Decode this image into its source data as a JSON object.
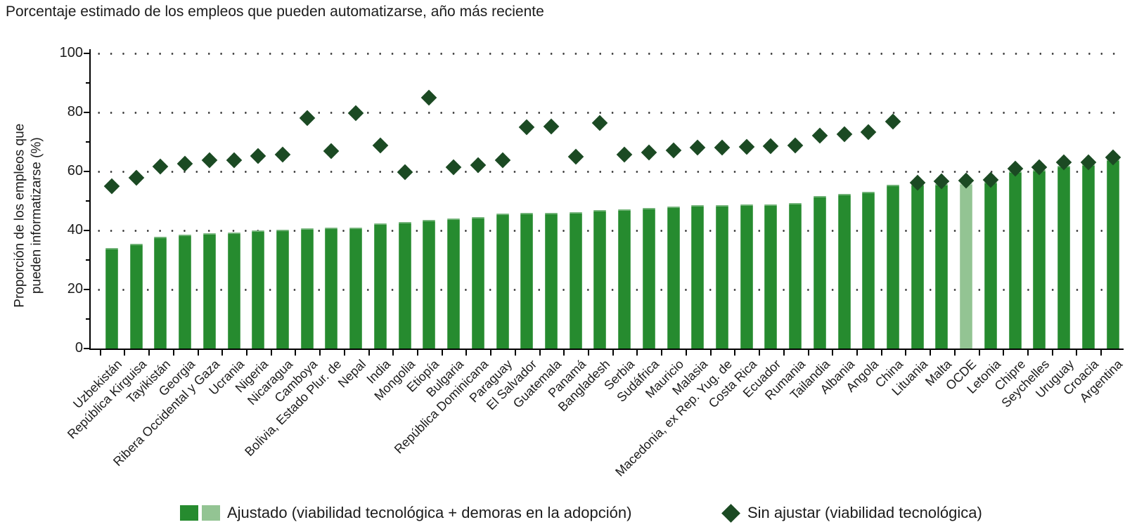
{
  "title": "Porcentaje estimado de los empleos que pueden automatizarse, año más reciente",
  "y_axis": {
    "label_line1": "Proporción de los empleos que",
    "label_line2": "pueden informatizarse (%)",
    "ticks": [
      0,
      20,
      40,
      60,
      80,
      100
    ]
  },
  "legend": {
    "adjusted_label": "Ajustado (viabilidad tecnológica + demoras en la adopción)",
    "unadjusted_label": "Sin ajustar (viabilidad tecnológica)"
  },
  "colors": {
    "bar_green": "#268b2f",
    "bar_light": "#93c493",
    "diamond_green": "#1b4a23",
    "text": "#1c1c1c",
    "dot": "#3c3c3c",
    "axis": "#000000"
  },
  "chart_data": {
    "type": "bar",
    "title": "Porcentaje estimado de los empleos que pueden automatizarse, año más reciente",
    "xlabel": "",
    "ylabel": "Proporción de los empleos que pueden informatizarse (%)",
    "ylim": [
      0,
      100
    ],
    "grid": "dotted horizontal lines at 20/40/60/80/100",
    "legend_position": "bottom",
    "highlighted_category": "OCDE",
    "categories": [
      "Uzbekistán",
      "República Kirguisa",
      "Tayikistán",
      "Georgia",
      "Ribera Occidental y Gaza",
      "Ucrania",
      "Nigeria",
      "Nicaragua",
      "Camboya",
      "Bolivia, Estado Plur. de",
      "Nepal",
      "India",
      "Mongolia",
      "Etiopía",
      "Bulgaria",
      "República Dominicana",
      "Paraguay",
      "El Salvador",
      "Guatemala",
      "Panamá",
      "Bangladesh",
      "Serbia",
      "Sudáfrica",
      "Mauricio",
      "Malasia",
      "Macedonia, ex Rep. Yug. de",
      "Costa Rica",
      "Ecuador",
      "Rumania",
      "Tailandia",
      "Albania",
      "Angola",
      "China",
      "Lituania",
      "Malta",
      "OCDE",
      "Letonia",
      "Chipre",
      "Seychelles",
      "Uruguay",
      "Croacia",
      "Argentina"
    ],
    "series": [
      {
        "name": "Ajustado (viabilidad tecnológica + demoras en la adopción)",
        "type": "bar",
        "values": [
          34.0,
          35.5,
          37.8,
          38.6,
          39.1,
          39.2,
          39.9,
          40.2,
          40.6,
          41.0,
          41.0,
          42.5,
          42.8,
          43.5,
          44.0,
          44.6,
          45.6,
          45.9,
          46.0,
          46.3,
          47.0,
          47.1,
          47.6,
          48.1,
          48.5,
          48.6,
          48.8,
          48.9,
          49.3,
          51.7,
          52.4,
          53.1,
          55.4,
          55.6,
          55.8,
          56.0,
          56.4,
          60.0,
          60.4,
          62.0,
          62.4,
          64.0
        ]
      },
      {
        "name": "Sin ajustar (viabilidad tecnológica)",
        "type": "scatter-diamond",
        "values": [
          55.0,
          57.8,
          61.7,
          62.6,
          63.7,
          63.8,
          65.2,
          65.6,
          78.2,
          66.9,
          79.7,
          68.9,
          59.8,
          84.9,
          61.5,
          62.2,
          63.8,
          74.9,
          75.2,
          65.0,
          76.4,
          65.8,
          66.5,
          67.2,
          68.0,
          68.2,
          68.4,
          68.6,
          68.7,
          72.2,
          72.7,
          73.4,
          77.0,
          56.3,
          56.6,
          57.0,
          57.2,
          61.0,
          61.4,
          63.0,
          63.2,
          64.8
        ]
      }
    ]
  }
}
